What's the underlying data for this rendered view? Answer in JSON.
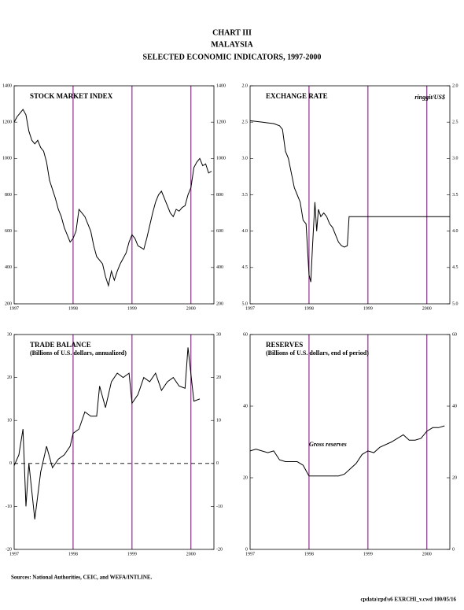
{
  "header": {
    "lines": [
      "CHART III",
      "MALAYSIA",
      "SELECTED ECONOMIC INDICATORS, 1997-2000"
    ]
  },
  "chart_data": [
    {
      "type": "line",
      "title": "STOCK MARKET INDEX",
      "x": [
        1997.0,
        1997.05,
        1997.1,
        1997.15,
        1997.2,
        1997.25,
        1997.3,
        1997.35,
        1997.4,
        1997.45,
        1997.5,
        1997.55,
        1997.6,
        1997.65,
        1997.7,
        1997.75,
        1997.8,
        1997.85,
        1997.9,
        1997.95,
        1998.0,
        1998.05,
        1998.1,
        1998.15,
        1998.2,
        1998.25,
        1998.3,
        1998.35,
        1998.4,
        1998.45,
        1998.5,
        1998.55,
        1998.6,
        1998.65,
        1998.7,
        1998.75,
        1998.8,
        1998.85,
        1998.9,
        1998.95,
        1999.0,
        1999.05,
        1999.1,
        1999.15,
        1999.2,
        1999.25,
        1999.3,
        1999.35,
        1999.4,
        1999.45,
        1999.5,
        1999.55,
        1999.6,
        1999.65,
        1999.7,
        1999.75,
        1999.8,
        1999.85,
        1999.9,
        1999.95,
        2000.0,
        2000.05,
        2000.1,
        2000.15,
        2000.2,
        2000.25,
        2000.3,
        2000.35
      ],
      "series": [
        {
          "color": "#000000",
          "values": [
            1200,
            1230,
            1250,
            1270,
            1240,
            1150,
            1100,
            1080,
            1100,
            1060,
            1040,
            980,
            880,
            830,
            780,
            720,
            680,
            620,
            580,
            540,
            560,
            600,
            720,
            700,
            680,
            640,
            600,
            520,
            460,
            440,
            420,
            350,
            300,
            380,
            330,
            380,
            420,
            450,
            480,
            540,
            580,
            560,
            520,
            510,
            500,
            560,
            630,
            700,
            760,
            800,
            820,
            780,
            740,
            700,
            680,
            720,
            710,
            730,
            740,
            800,
            840,
            950,
            980,
            1000,
            960,
            970,
            920,
            930
          ]
        }
      ],
      "xlim": [
        1997,
        2000.39
      ],
      "xticks": [
        1997,
        1998,
        1999,
        2000
      ],
      "ylim": [
        200,
        1400
      ],
      "yticks": [
        200,
        400,
        600,
        800,
        1000,
        1200,
        1400
      ],
      "year_line_color": "#800080"
    },
    {
      "type": "line",
      "title": "EXCHANGE RATE",
      "annotation": "ringgit/US$",
      "x": [
        1997.0,
        1997.1,
        1997.2,
        1997.3,
        1997.4,
        1997.5,
        1997.55,
        1997.6,
        1997.65,
        1997.7,
        1997.75,
        1997.8,
        1997.85,
        1997.9,
        1997.95,
        1998.0,
        1998.03,
        1998.06,
        1998.1,
        1998.13,
        1998.16,
        1998.2,
        1998.25,
        1998.3,
        1998.35,
        1998.4,
        1998.45,
        1998.5,
        1998.55,
        1998.6,
        1998.65,
        1998.68,
        2000.39
      ],
      "series": [
        {
          "color": "#000000",
          "values": [
            2.48,
            2.49,
            2.5,
            2.51,
            2.52,
            2.55,
            2.6,
            2.9,
            3.0,
            3.2,
            3.4,
            3.5,
            3.6,
            3.85,
            3.9,
            4.6,
            4.7,
            4.2,
            3.6,
            4.0,
            3.7,
            3.8,
            3.75,
            3.8,
            3.9,
            3.95,
            4.05,
            4.15,
            4.2,
            4.22,
            4.2,
            3.8,
            3.8
          ]
        }
      ],
      "xlim": [
        1997,
        2000.39
      ],
      "xticks": [
        1997,
        1998,
        1999,
        2000
      ],
      "ylim": [
        2,
        5
      ],
      "y_inverted": true,
      "yticks": [
        {
          "value": 2,
          "label": "2.0"
        },
        {
          "value": 2.5,
          "label": "2.5"
        },
        {
          "value": 3,
          "label": "3.0"
        },
        {
          "value": 3.5,
          "label": "3.5"
        },
        {
          "value": 4,
          "label": "4.0"
        },
        {
          "value": 4.5,
          "label": "4.5"
        },
        {
          "value": 5,
          "label": "5.0"
        }
      ],
      "year_line_color": "#800080"
    },
    {
      "type": "line",
      "title": "TRADE BALANCE",
      "subtitle": "(Billions of U.S. dollars, annualized)",
      "x": [
        1997.0,
        1997.08,
        1997.15,
        1997.2,
        1997.25,
        1997.35,
        1997.45,
        1997.55,
        1997.65,
        1997.75,
        1997.85,
        1997.95,
        1998.0,
        1998.1,
        1998.2,
        1998.3,
        1998.4,
        1998.45,
        1998.55,
        1998.65,
        1998.75,
        1998.85,
        1998.95,
        1999.0,
        1999.1,
        1999.2,
        1999.3,
        1999.4,
        1999.5,
        1999.6,
        1999.7,
        1999.8,
        1999.9,
        1999.95,
        2000.05,
        2000.15
      ],
      "series": [
        {
          "color": "#000000",
          "values": [
            -0.5,
            2,
            8,
            -10,
            0,
            -13,
            -2,
            4,
            -1,
            1,
            2,
            4,
            7,
            8,
            12,
            11,
            11,
            18,
            13,
            19,
            21,
            20,
            21,
            14,
            16,
            20,
            19,
            21,
            17,
            19,
            20,
            18,
            17.5,
            27,
            14.5,
            15
          ]
        }
      ],
      "xlim": [
        1997,
        2000.39
      ],
      "xticks": [
        1997,
        1998,
        1999,
        2000
      ],
      "ylim": [
        -20,
        30
      ],
      "yticks": [
        -20,
        -10,
        0,
        10,
        20,
        30
      ],
      "zero_line": true,
      "year_line_color": "#800080"
    },
    {
      "type": "line",
      "title": "RESERVES",
      "subtitle": "(Billions of U.S. dollars, end of period)",
      "annotation": "Gross reserves",
      "x": [
        1997.0,
        1997.1,
        1997.2,
        1997.3,
        1997.4,
        1997.5,
        1997.6,
        1997.7,
        1997.8,
        1997.9,
        1998.0,
        1998.1,
        1998.3,
        1998.5,
        1998.6,
        1998.7,
        1998.8,
        1998.9,
        1999.0,
        1999.1,
        1999.2,
        1999.4,
        1999.5,
        1999.6,
        1999.7,
        1999.8,
        1999.9,
        2000.0,
        2000.1,
        2000.2,
        2000.3
      ],
      "series": [
        {
          "color": "#000000",
          "values": [
            27.5,
            28,
            27.5,
            27,
            27.5,
            25,
            24.5,
            24.5,
            24.5,
            23.5,
            20.5,
            20.5,
            20.5,
            20.5,
            21,
            22.5,
            24,
            26.5,
            27.5,
            27,
            28.5,
            30,
            31,
            32,
            30.5,
            30.5,
            31,
            33,
            34,
            34,
            34.5
          ]
        }
      ],
      "xlim": [
        1997,
        2000.39
      ],
      "xticks": [
        1997,
        1998,
        1999,
        2000
      ],
      "ylim": [
        0,
        60
      ],
      "yticks": [
        0,
        20,
        40,
        60
      ],
      "year_line_color": "#800080"
    }
  ],
  "footer": {
    "source": "Sources:  National Authorities, CEIC, and WEFA/INTLINE.",
    "file": "cpdata\\rpd\\s6 EXRCHI_v.cwd 100/05/16"
  }
}
